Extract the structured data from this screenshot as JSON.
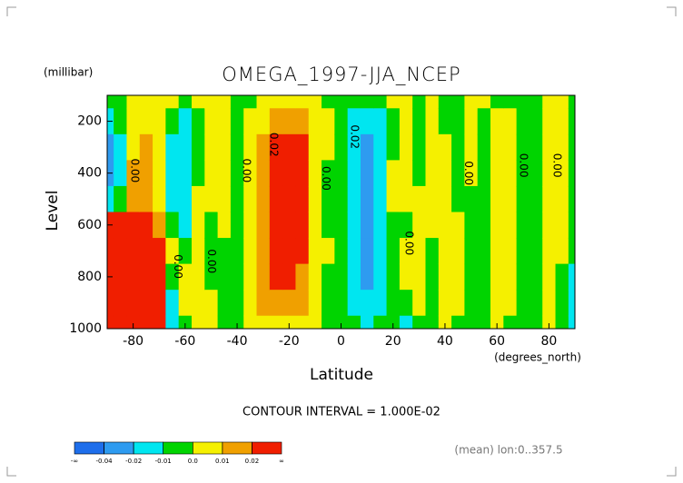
{
  "chart_data": {
    "type": "contour",
    "title": "OMEGA_1997-JJA_NCEP",
    "y_units": "(millibar)",
    "ylabel": "Level",
    "xlabel": "Latitude",
    "x_units": "(degrees_north)",
    "contour_interval_text": "CONTOUR INTERVAL = 1.000E-02",
    "footnote": "(mean) lon:0..357.5",
    "xlim": [
      -90,
      90
    ],
    "ylim": [
      1000,
      100
    ],
    "xticks": [
      -80,
      -60,
      -40,
      -20,
      0,
      20,
      40,
      60,
      80
    ],
    "yticks": [
      200,
      400,
      600,
      800,
      1000
    ],
    "x": [
      -90,
      -85,
      -80,
      -75,
      -70,
      -65,
      -60,
      -55,
      -50,
      -45,
      -40,
      -35,
      -30,
      -25,
      -20,
      -15,
      -10,
      -5,
      0,
      5,
      10,
      15,
      20,
      25,
      30,
      35,
      40,
      45,
      50,
      55,
      60,
      65,
      70,
      75,
      80,
      85,
      90
    ],
    "y": [
      100,
      200,
      300,
      400,
      500,
      600,
      700,
      800,
      900,
      1000
    ],
    "z": [
      [
        -0.005,
        -0.015,
        -0.03,
        -0.03,
        -0.02,
        0.03,
        0.05,
        0.06,
        0.06,
        0.06
      ],
      [
        -0.005,
        -0.005,
        -0.012,
        -0.012,
        -0.005,
        0.03,
        0.06,
        0.08,
        0.09,
        0.09
      ],
      [
        0.005,
        0.005,
        0.005,
        0.012,
        0.012,
        0.03,
        0.07,
        0.09,
        0.1,
        0.1
      ],
      [
        0.005,
        0.005,
        0.012,
        0.015,
        0.015,
        0.02,
        0.06,
        0.08,
        0.09,
        0.08
      ],
      [
        0.005,
        0.005,
        0.005,
        0.005,
        0.008,
        0.012,
        0.03,
        0.04,
        0.03,
        0.02
      ],
      [
        0.005,
        -0.005,
        -0.012,
        -0.012,
        -0.012,
        -0.005,
        0.005,
        -0.005,
        -0.012,
        -0.015
      ],
      [
        -0.005,
        -0.012,
        -0.012,
        -0.012,
        -0.012,
        -0.012,
        -0.005,
        0.005,
        0.005,
        -0.005
      ],
      [
        0.005,
        -0.005,
        -0.005,
        -0.005,
        0.005,
        0.005,
        0.005,
        0.005,
        0.005,
        0.005
      ],
      [
        0.005,
        0.005,
        0.005,
        0.005,
        0.005,
        -0.005,
        -0.005,
        -0.005,
        0.005,
        0.005
      ],
      [
        0.005,
        0.005,
        0.005,
        0.005,
        0.005,
        0.005,
        -0.005,
        -0.005,
        -0.005,
        -0.005
      ],
      [
        -0.005,
        -0.005,
        -0.005,
        -0.005,
        -0.005,
        -0.005,
        -0.005,
        -0.005,
        -0.005,
        -0.005
      ],
      [
        -0.005,
        0.005,
        0.005,
        0.005,
        0.005,
        0.005,
        0.005,
        0.005,
        0.005,
        0.005
      ],
      [
        0.005,
        0.005,
        0.012,
        0.015,
        0.015,
        0.015,
        0.015,
        0.015,
        0.012,
        0.005
      ],
      [
        0.005,
        0.012,
        0.025,
        0.03,
        0.03,
        0.03,
        0.03,
        0.03,
        0.015,
        0.005
      ],
      [
        0.005,
        0.015,
        0.03,
        0.035,
        0.035,
        0.035,
        0.035,
        0.03,
        0.015,
        0.005
      ],
      [
        0.005,
        0.012,
        0.025,
        0.03,
        0.03,
        0.025,
        0.025,
        0.015,
        0.012,
        0.005
      ],
      [
        0.005,
        0.005,
        0.005,
        0.005,
        0.008,
        0.008,
        0.008,
        0.005,
        0.005,
        0.005
      ],
      [
        -0.005,
        0.005,
        0.005,
        -0.005,
        -0.005,
        -0.005,
        0.005,
        -0.005,
        -0.005,
        -0.005
      ],
      [
        -0.005,
        -0.005,
        -0.005,
        -0.005,
        -0.005,
        -0.005,
        -0.005,
        -0.005,
        -0.005,
        -0.005
      ],
      [
        -0.005,
        -0.012,
        -0.015,
        -0.015,
        -0.015,
        -0.015,
        -0.015,
        -0.012,
        -0.012,
        -0.005
      ],
      [
        -0.005,
        -0.015,
        -0.025,
        -0.03,
        -0.03,
        -0.025,
        -0.025,
        -0.025,
        -0.015,
        -0.012
      ],
      [
        -0.005,
        -0.012,
        -0.015,
        -0.015,
        -0.015,
        -0.012,
        -0.015,
        -0.012,
        -0.012,
        -0.005
      ],
      [
        0.005,
        -0.005,
        -0.005,
        0.005,
        0.005,
        -0.005,
        -0.005,
        -0.005,
        -0.005,
        -0.005
      ],
      [
        0.005,
        0.005,
        0.005,
        0.005,
        0.005,
        -0.005,
        0.005,
        0.005,
        -0.005,
        -0.012
      ],
      [
        -0.005,
        -0.005,
        -0.005,
        -0.005,
        0.005,
        0.005,
        0.005,
        0.005,
        0.005,
        -0.005
      ],
      [
        0.005,
        0.005,
        0.005,
        0.005,
        0.005,
        0.005,
        -0.005,
        -0.005,
        -0.005,
        -0.005
      ],
      [
        -0.005,
        -0.005,
        0.005,
        0.005,
        0.005,
        0.005,
        0.005,
        0.005,
        0.005,
        0.005
      ],
      [
        -0.005,
        -0.005,
        -0.005,
        -0.005,
        -0.005,
        0.005,
        0.005,
        0.005,
        0.005,
        -0.005
      ],
      [
        0.005,
        0.005,
        0.005,
        0.005,
        -0.005,
        -0.005,
        -0.005,
        -0.005,
        -0.005,
        -0.005
      ],
      [
        0.005,
        -0.005,
        -0.005,
        -0.005,
        -0.005,
        -0.005,
        -0.005,
        -0.005,
        -0.005,
        -0.005
      ],
      [
        -0.005,
        0.005,
        0.005,
        0.005,
        0.005,
        0.005,
        0.005,
        0.005,
        0.005,
        0.005
      ],
      [
        -0.005,
        0.005,
        0.005,
        0.005,
        0.005,
        0.005,
        0.005,
        0.005,
        0.005,
        -0.005
      ],
      [
        -0.005,
        -0.005,
        -0.005,
        -0.005,
        -0.005,
        -0.005,
        -0.005,
        -0.005,
        -0.005,
        -0.005
      ],
      [
        -0.005,
        -0.005,
        -0.005,
        -0.005,
        -0.005,
        -0.005,
        -0.005,
        -0.005,
        -0.005,
        -0.005
      ],
      [
        0.005,
        0.005,
        0.005,
        0.005,
        0.005,
        0.005,
        0.005,
        0.005,
        0.005,
        0.005
      ],
      [
        0.005,
        0.005,
        0.005,
        0.005,
        0.005,
        0.005,
        0.005,
        -0.005,
        -0.005,
        -0.005
      ],
      [
        -0.005,
        -0.005,
        -0.005,
        -0.005,
        -0.005,
        -0.005,
        -0.005,
        -0.012,
        -0.012,
        -0.012
      ]
    ],
    "levels": [
      -0.04,
      -0.02,
      -0.01,
      0,
      0.01,
      0.02
    ],
    "colors": [
      "#1e6eeb",
      "#2e9bf0",
      "#00e6f0",
      "#00d400",
      "#f5f000",
      "#f0a000",
      "#f01e00"
    ],
    "colorbar_labels": [
      "-∞",
      "-0.04",
      "-0.02",
      "-0.01",
      "0.0",
      "0.01",
      "0.02",
      "∞"
    ],
    "annotations": [
      {
        "text": "0.00",
        "x": -79.5,
        "y": 390
      },
      {
        "text": "0.00",
        "x": -36.5,
        "y": 390
      },
      {
        "text": "0.02",
        "x": -26,
        "y": 290
      },
      {
        "text": "0.00",
        "x": -6,
        "y": 420
      },
      {
        "text": "0.02",
        "x": 5,
        "y": 260
      },
      {
        "text": "0.00",
        "x": -50,
        "y": 740
      },
      {
        "text": "0.00",
        "x": -63,
        "y": 760
      },
      {
        "text": "0.00",
        "x": 26,
        "y": 670
      },
      {
        "text": "0.00",
        "x": 49,
        "y": 400
      },
      {
        "text": "0.00",
        "x": 70,
        "y": 370
      },
      {
        "text": "0.00",
        "x": 83,
        "y": 370
      }
    ]
  }
}
